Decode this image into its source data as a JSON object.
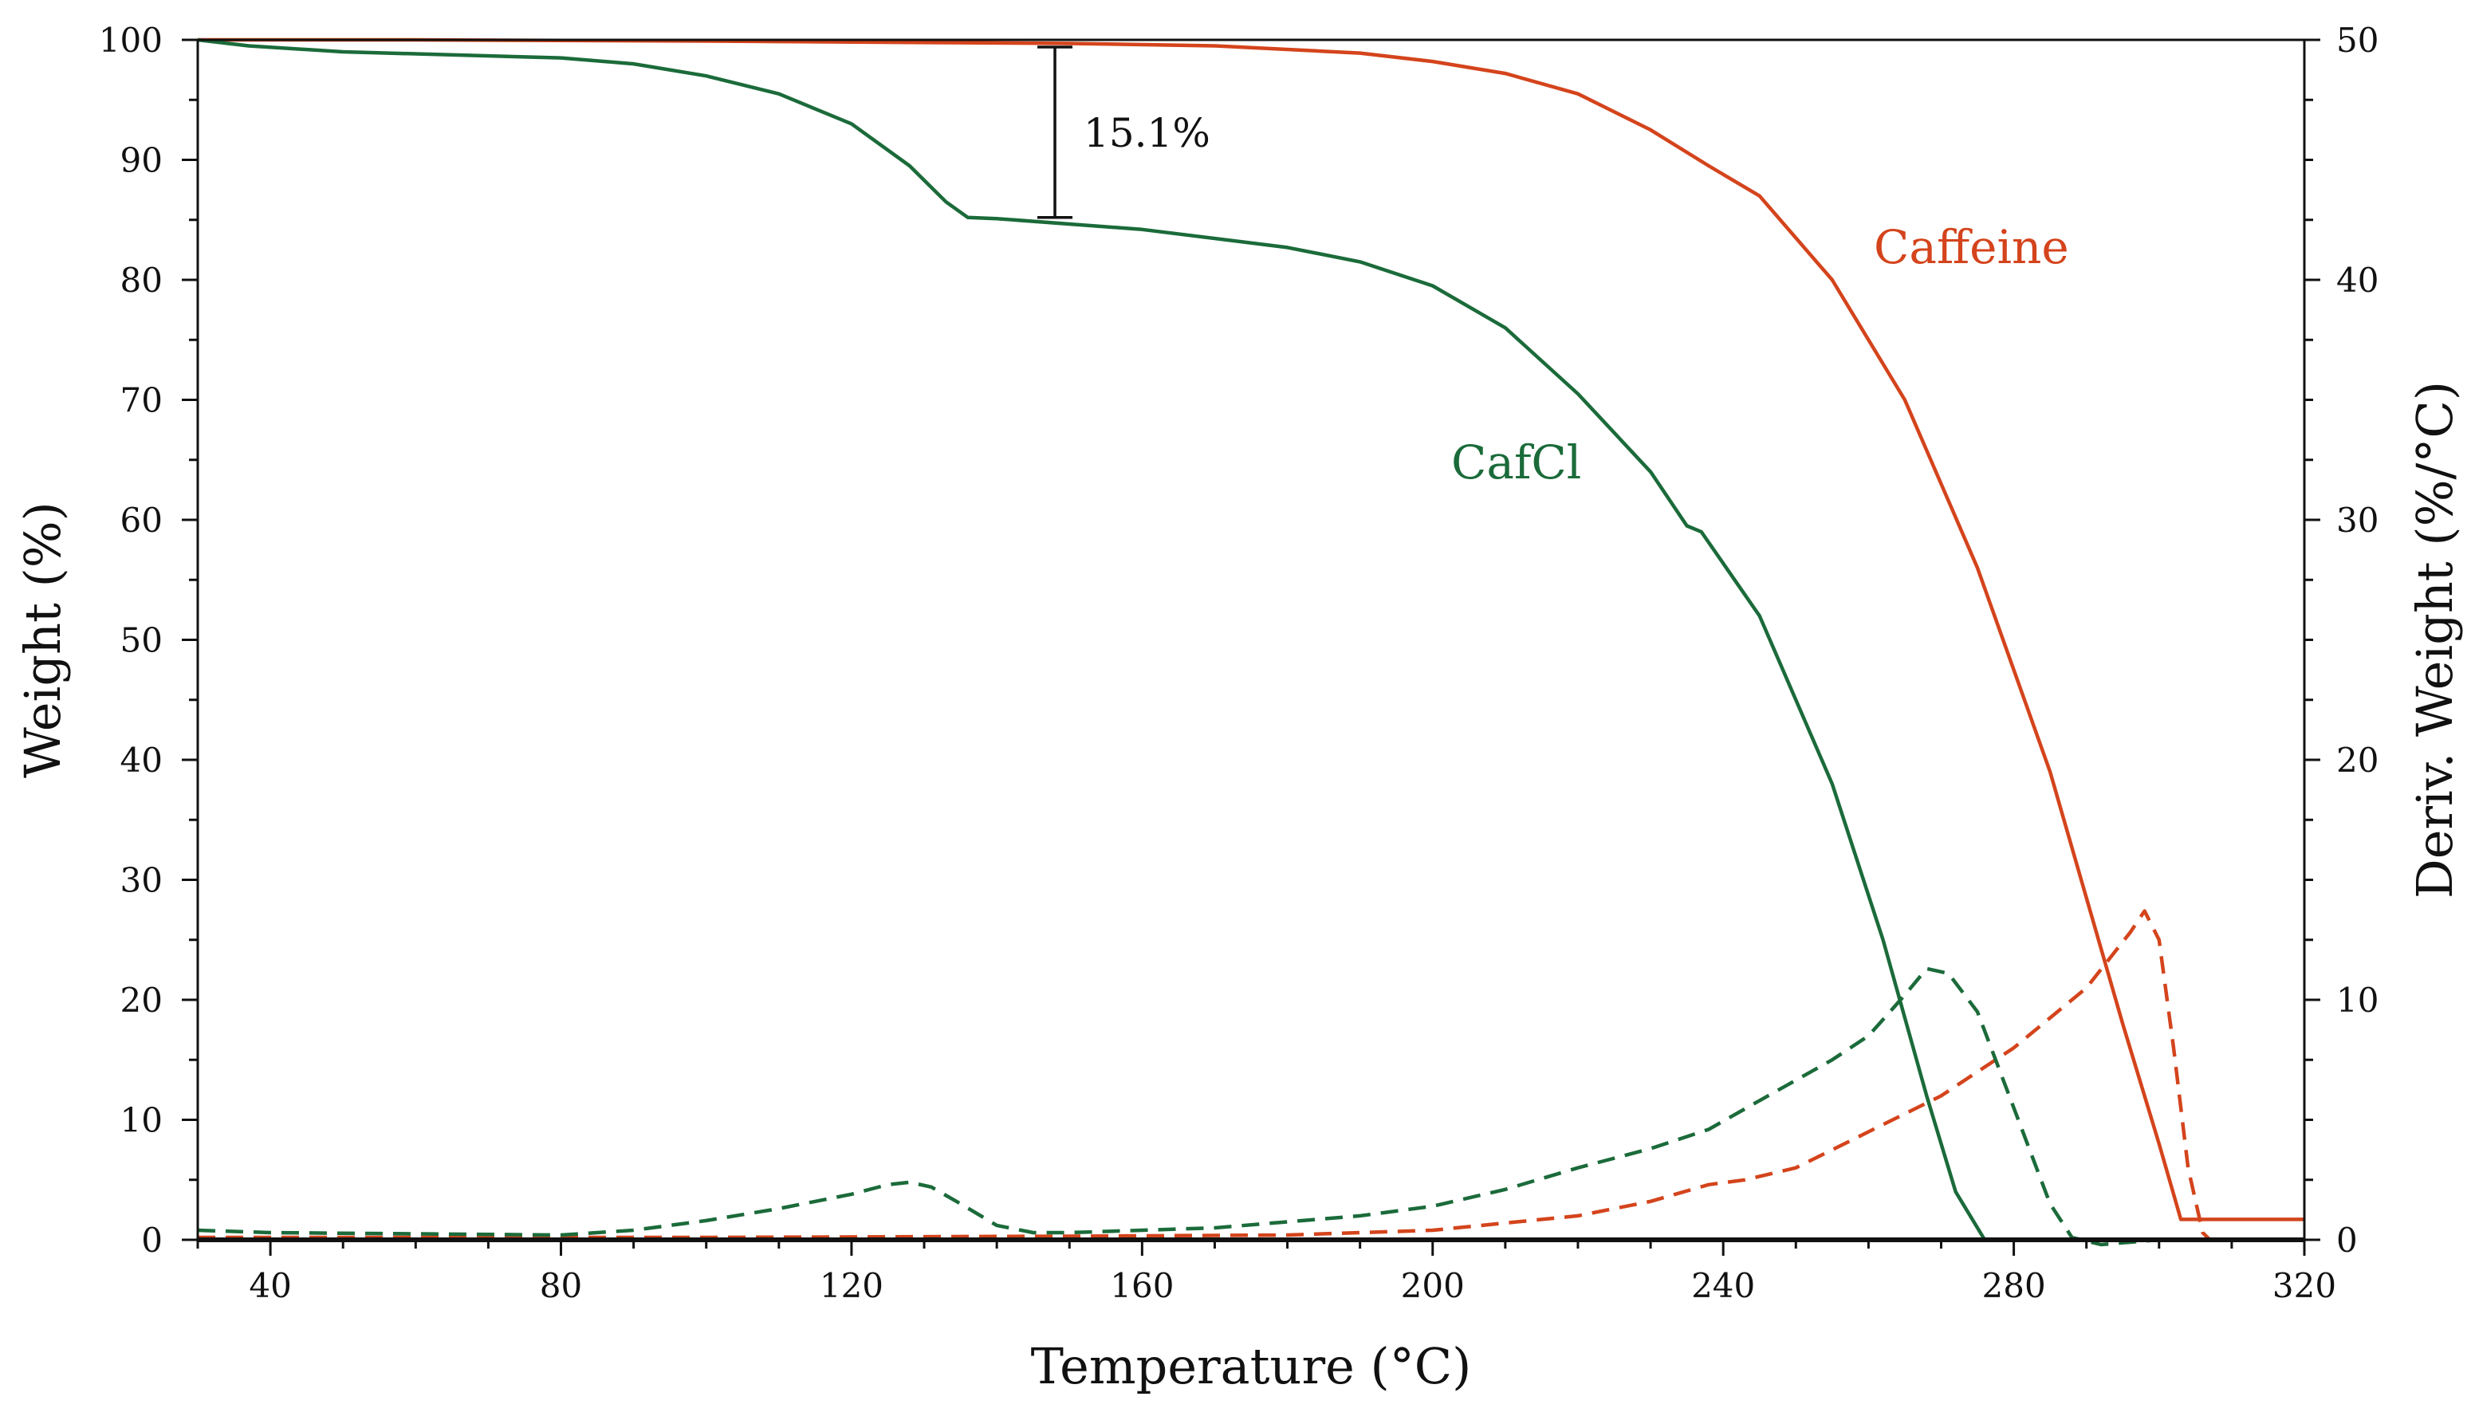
{
  "chart_data": {
    "type": "line",
    "title": "",
    "xlabel": "Temperature (°C)",
    "ylabel": "Weight (%)",
    "y2label": "Deriv. Weight (%/°C)",
    "xlim": [
      30,
      320
    ],
    "ylim": [
      0,
      100
    ],
    "y2lim": [
      0,
      50
    ],
    "xticks": [
      40,
      80,
      120,
      160,
      200,
      240,
      280,
      320
    ],
    "yticks": [
      0,
      10,
      20,
      30,
      40,
      50,
      60,
      70,
      80,
      90,
      100
    ],
    "y2ticks": [
      0,
      10,
      20,
      30,
      40,
      50
    ],
    "grid": false,
    "colors": {
      "caffeine": "#d4441c",
      "cafcl": "#1b6b3a",
      "axis": "#111111"
    },
    "series": [
      {
        "name": "Caffeine",
        "kind": "weight",
        "axis": "left",
        "style": "solid",
        "color": "#d4441c",
        "x": [
          30,
          60,
          100,
          150,
          170,
          190,
          200,
          210,
          220,
          230,
          238,
          245,
          255,
          265,
          275,
          285,
          295,
          300,
          303,
          310,
          320
        ],
        "y": [
          100,
          100,
          99.9,
          99.7,
          99.5,
          98.9,
          98.2,
          97.2,
          95.5,
          92.5,
          89.5,
          87,
          80,
          70,
          56,
          39,
          18,
          8,
          1.7,
          1.7,
          1.7
        ]
      },
      {
        "name": "CafCl",
        "kind": "weight",
        "axis": "left",
        "style": "solid",
        "color": "#1b6b3a",
        "x": [
          30,
          37,
          50,
          80,
          90,
          100,
          110,
          120,
          128,
          133,
          136,
          140,
          160,
          180,
          190,
          200,
          210,
          220,
          230,
          235,
          237,
          245,
          255,
          262,
          268,
          272,
          276,
          280,
          320
        ],
        "y": [
          100,
          99.5,
          99,
          98.5,
          98,
          97,
          95.5,
          93,
          89.5,
          86.5,
          85.2,
          85.1,
          84.2,
          82.7,
          81.5,
          79.5,
          76,
          70.5,
          64,
          59.5,
          59,
          52,
          38,
          25,
          12,
          4,
          0,
          0,
          0
        ]
      },
      {
        "name": "Caffeine",
        "kind": "derivative",
        "axis": "right",
        "style": "dashed",
        "color": "#d4441c",
        "x": [
          30,
          100,
          150,
          180,
          200,
          220,
          230,
          238,
          243,
          250,
          260,
          270,
          280,
          290,
          296,
          298,
          300,
          302,
          304,
          306,
          307,
          320
        ],
        "y": [
          0.1,
          0.1,
          0.15,
          0.2,
          0.4,
          1,
          1.6,
          2.3,
          2.5,
          3,
          4.5,
          6,
          8,
          10.5,
          12.8,
          13.7,
          12.5,
          8,
          3,
          0.3,
          0,
          0
        ]
      },
      {
        "name": "CafCl",
        "kind": "derivative",
        "axis": "right",
        "style": "dashed",
        "color": "#1b6b3a",
        "x": [
          30,
          40,
          80,
          90,
          100,
          110,
          120,
          125,
          128,
          131,
          135,
          140,
          145,
          150,
          170,
          190,
          200,
          210,
          220,
          230,
          238,
          245,
          255,
          260,
          265,
          268,
          271,
          275,
          280,
          285,
          288,
          292,
          300,
          320
        ],
        "y": [
          0.4,
          0.3,
          0.2,
          0.4,
          0.8,
          1.3,
          1.9,
          2.3,
          2.4,
          2.2,
          1.5,
          0.6,
          0.3,
          0.3,
          0.5,
          1,
          1.4,
          2.1,
          3,
          3.8,
          4.6,
          5.8,
          7.5,
          8.5,
          10.2,
          11.3,
          11.1,
          9.5,
          5.5,
          1.5,
          0.1,
          -0.2,
          0,
          0
        ]
      }
    ],
    "labels": {
      "caffeine": "Caffeine",
      "cafcl": "CafCl"
    },
    "annotations": [
      {
        "text": "15.1%",
        "x": 148,
        "y_top": 99.4,
        "y_bottom": 85.2
      }
    ]
  }
}
